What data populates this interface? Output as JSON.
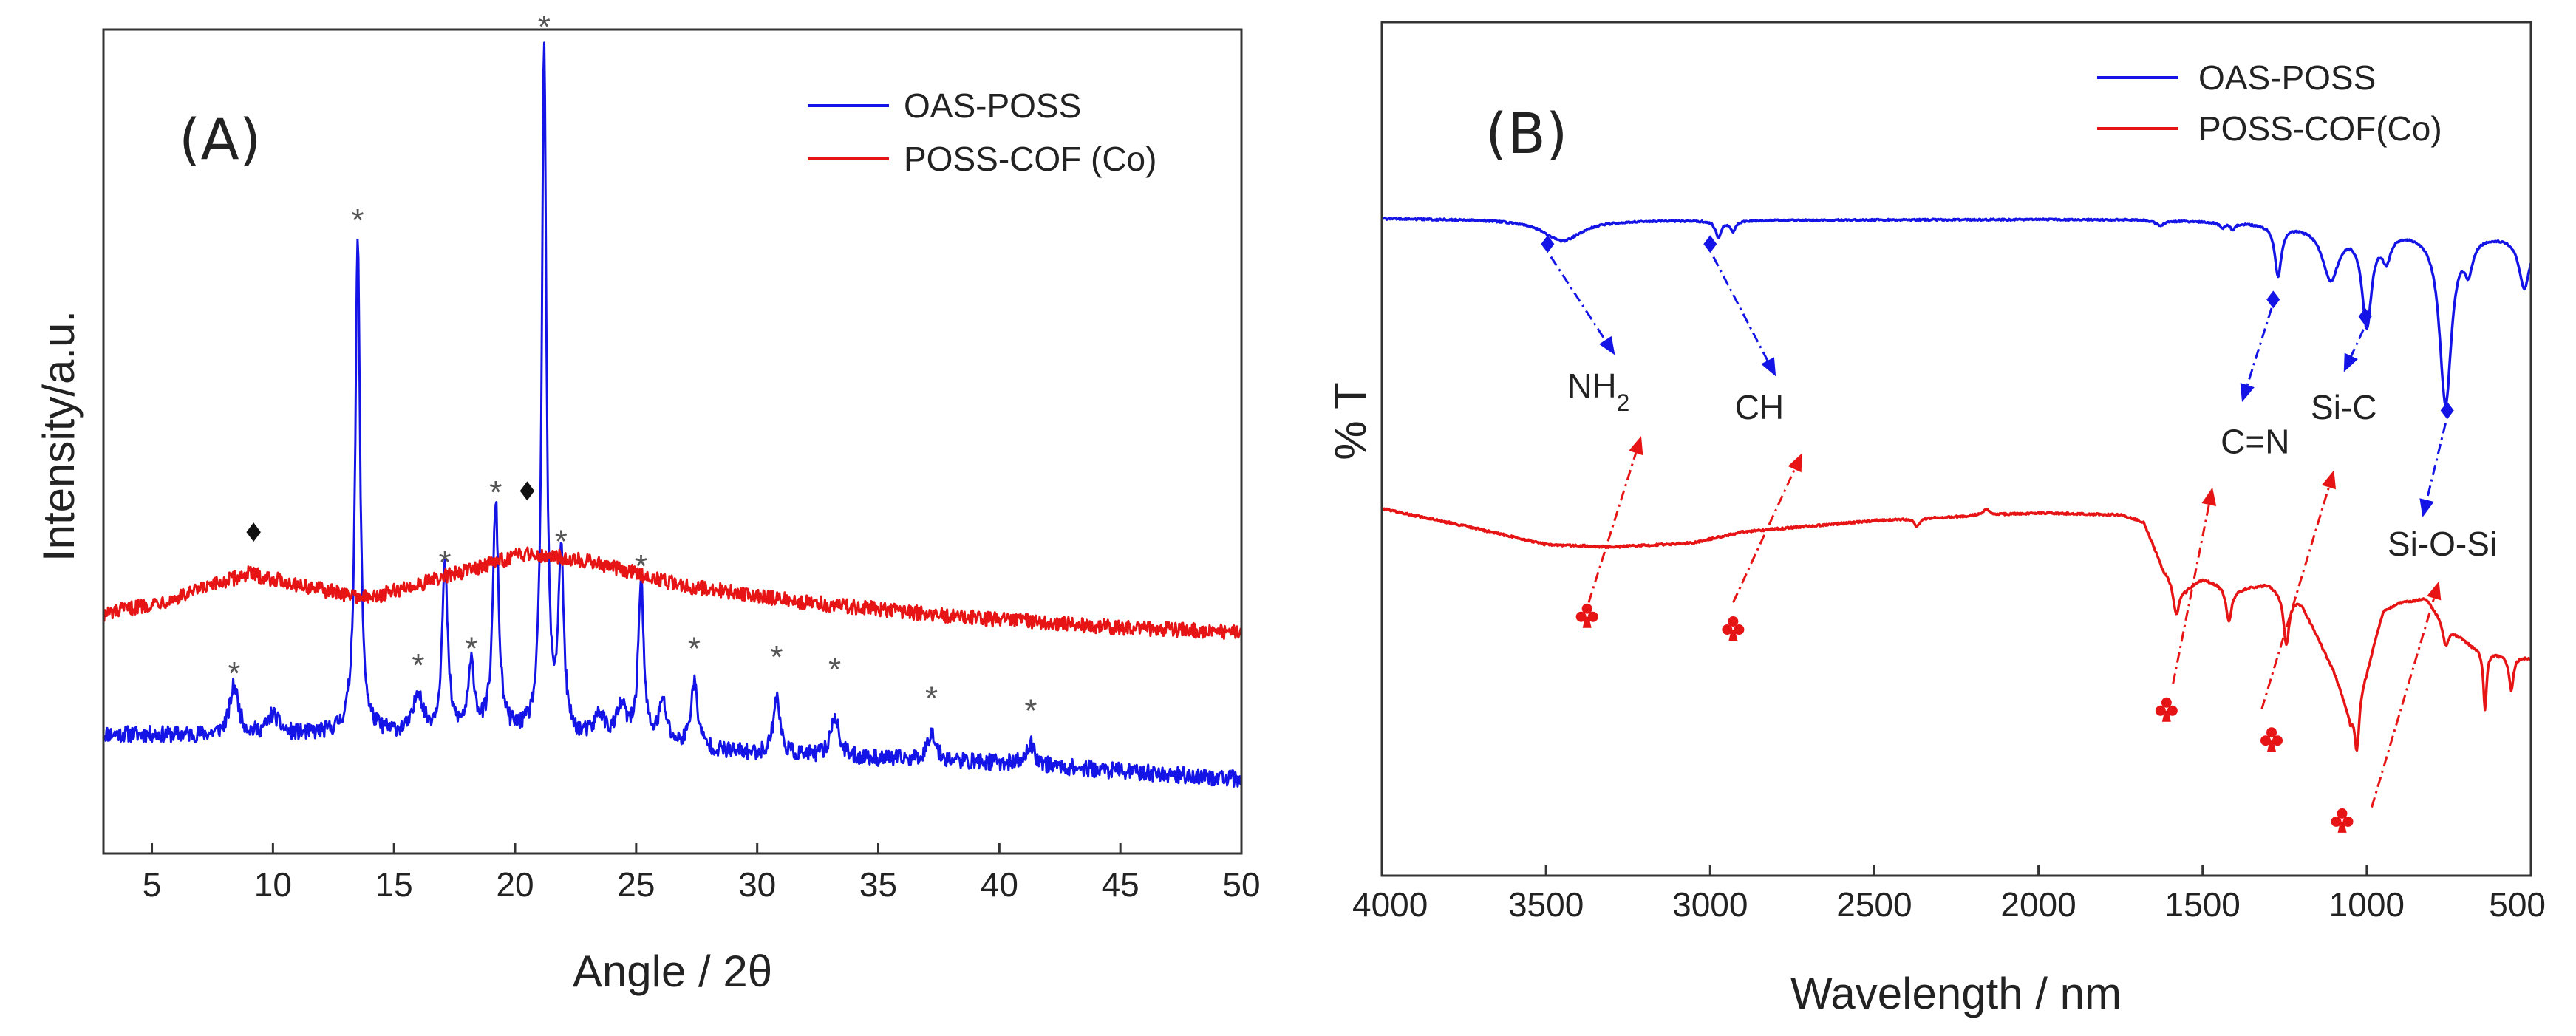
{
  "chart_data": [
    {
      "type": "line",
      "panel_label": "(A)",
      "title": "",
      "xlabel": "Angle / 2θ",
      "ylabel": "Intensity/a.u.",
      "xlim": [
        3,
        50
      ],
      "ylim": [
        0,
        100
      ],
      "xticks": [
        5,
        10,
        15,
        20,
        25,
        30,
        35,
        40,
        45,
        50
      ],
      "y_ticks_shown": false,
      "grid": false,
      "legend_position": "top-right",
      "series": [
        {
          "name": "OAS-POSS",
          "color": "#1414e6",
          "noise": 1.0,
          "baseline": [
            [
              3,
              14.5
            ],
            [
              10,
              14.2
            ],
            [
              13,
              14.6
            ],
            [
              20,
              14.3
            ],
            [
              30,
              12.0
            ],
            [
              40,
              11.0
            ],
            [
              50,
              9.0
            ]
          ],
          "peaks": [
            {
              "x": 8.4,
              "height": 6,
              "width": 0.22
            },
            {
              "x": 10.0,
              "height": 2.5,
              "width": 0.3
            },
            {
              "x": 13.5,
              "height": 60,
              "width": 0.12
            },
            {
              "x": 16.0,
              "height": 5,
              "width": 0.2
            },
            {
              "x": 17.1,
              "height": 20,
              "width": 0.14
            },
            {
              "x": 18.2,
              "height": 8,
              "width": 0.16
            },
            {
              "x": 19.2,
              "height": 28,
              "width": 0.14
            },
            {
              "x": 21.2,
              "height": 84,
              "width": 0.11
            },
            {
              "x": 21.9,
              "height": 22,
              "width": 0.13
            },
            {
              "x": 23.5,
              "height": 3,
              "width": 0.25
            },
            {
              "x": 24.4,
              "height": 4,
              "width": 0.25
            },
            {
              "x": 25.2,
              "height": 20,
              "width": 0.13
            },
            {
              "x": 26.1,
              "height": 5,
              "width": 0.2
            },
            {
              "x": 27.4,
              "height": 8,
              "width": 0.17
            },
            {
              "x": 30.8,
              "height": 7,
              "width": 0.17
            },
            {
              "x": 33.2,
              "height": 5,
              "width": 0.2
            },
            {
              "x": 37.2,
              "height": 3.5,
              "width": 0.2
            },
            {
              "x": 41.3,
              "height": 2.5,
              "width": 0.2
            }
          ]
        },
        {
          "name": "POSS-COF (Co)",
          "color": "#e61414",
          "noise": 0.9,
          "baseline": [
            [
              3,
              29.0
            ],
            [
              6,
              31.0
            ],
            [
              9,
              34.0
            ],
            [
              12,
              32.0
            ],
            [
              14,
              31.0
            ],
            [
              17,
              33.5
            ],
            [
              20.5,
              36.5
            ],
            [
              23,
              35.5
            ],
            [
              27,
              32.5
            ],
            [
              32,
              30.5
            ],
            [
              38,
              28.8
            ],
            [
              44,
              27.6
            ],
            [
              50,
              26.8
            ]
          ],
          "peaks": []
        }
      ],
      "annotations": [
        {
          "marker": "*",
          "x": 8.4,
          "y": 22.5
        },
        {
          "marker": "*",
          "x": 13.5,
          "y": 77.5
        },
        {
          "marker": "*",
          "x": 16.0,
          "y": 23.5
        },
        {
          "marker": "*",
          "x": 17.1,
          "y": 36.0
        },
        {
          "marker": "*",
          "x": 18.2,
          "y": 25.5
        },
        {
          "marker": "*",
          "x": 19.2,
          "y": 44.5
        },
        {
          "marker": "*",
          "x": 21.2,
          "y": 101.0
        },
        {
          "marker": "*",
          "x": 21.9,
          "y": 38.5
        },
        {
          "marker": "*",
          "x": 25.2,
          "y": 35.5
        },
        {
          "marker": "*",
          "x": 27.4,
          "y": 25.5
        },
        {
          "marker": "*",
          "x": 30.8,
          "y": 24.5
        },
        {
          "marker": "*",
          "x": 33.2,
          "y": 23.0
        },
        {
          "marker": "*",
          "x": 37.2,
          "y": 19.5
        },
        {
          "marker": "*",
          "x": 41.3,
          "y": 18.0
        }
      ],
      "diamond_markers": [
        {
          "x": 9.2,
          "y": 39.0
        },
        {
          "x": 20.5,
          "y": 44.0
        }
      ]
    },
    {
      "type": "line",
      "panel_label": "(B)",
      "title": "",
      "xlabel": "Wavelength / nm",
      "ylabel": "% T",
      "xlim": [
        4000,
        500
      ],
      "ylim": [
        0,
        100
      ],
      "xticks": [
        4000,
        3500,
        3000,
        2500,
        2000,
        1500,
        1000,
        500
      ],
      "y_ticks_shown": false,
      "grid": false,
      "legend_position": "top-right",
      "series": [
        {
          "name": "OAS-POSS",
          "color": "#1414e6",
          "noise": 0.1,
          "baseline": [
            [
              4000,
              77.0
            ],
            [
              3000,
              76.8
            ],
            [
              2000,
              76.9
            ],
            [
              1700,
              76.9
            ],
            [
              1300,
              76.5
            ],
            [
              500,
              75.0
            ]
          ],
          "peaks": [
            {
              "x": 3450,
              "height": -2.5,
              "width": 70
            },
            {
              "x": 2975,
              "height": -2.0,
              "width": 10
            },
            {
              "x": 2930,
              "height": -1.2,
              "width": 10
            },
            {
              "x": 1630,
              "height": -0.6,
              "width": 15
            },
            {
              "x": 1440,
              "height": -0.6,
              "width": 10
            },
            {
              "x": 1408,
              "height": -0.8,
              "width": 8
            },
            {
              "x": 1270,
              "height": -6.0,
              "width": 12
            },
            {
              "x": 1110,
              "height": -6.0,
              "width": 30
            },
            {
              "x": 1000,
              "height": -11.0,
              "width": 18
            },
            {
              "x": 940,
              "height": -3.0,
              "width": 15
            },
            {
              "x": 760,
              "height": -20.0,
              "width": 22
            },
            {
              "x": 690,
              "height": -3.5,
              "width": 15
            },
            {
              "x": 520,
              "height": -6.0,
              "width": 20
            }
          ]
        },
        {
          "name": "POSS-COF(Co)",
          "color": "#e61414",
          "noise": 0.12,
          "baseline": [
            [
              4000,
              43.0
            ],
            [
              3750,
              41.0
            ],
            [
              3500,
              38.8
            ],
            [
              3300,
              38.5
            ],
            [
              3050,
              39.0
            ],
            [
              2900,
              40.3
            ],
            [
              2500,
              41.6
            ],
            [
              2000,
              42.5
            ],
            [
              1750,
              42.3
            ],
            [
              1680,
              41.5
            ],
            [
              1620,
              36.0
            ],
            [
              1550,
              33.8
            ],
            [
              1500,
              34.8
            ],
            [
              1400,
              33.6
            ],
            [
              1300,
              34.2
            ],
            [
              1200,
              32.0
            ],
            [
              1100,
              24.0
            ],
            [
              1050,
              18.5
            ],
            [
              1000,
              24.0
            ],
            [
              950,
              31.0
            ],
            [
              900,
              32.0
            ],
            [
              820,
              32.5
            ],
            [
              750,
              29.0
            ],
            [
              680,
              27.0
            ],
            [
              600,
              26.0
            ],
            [
              500,
              25.5
            ]
          ],
          "peaks": [
            {
              "x": 2370,
              "height": -1.0,
              "width": 8
            },
            {
              "x": 2160,
              "height": 0.7,
              "width": 15
            },
            {
              "x": 1580,
              "height": -4.0,
              "width": 12
            },
            {
              "x": 1420,
              "height": -4.0,
              "width": 10
            },
            {
              "x": 1245,
              "height": -6.0,
              "width": 10
            },
            {
              "x": 1030,
              "height": -6.0,
              "width": 8
            },
            {
              "x": 760,
              "height": -2.5,
              "width": 10
            },
            {
              "x": 640,
              "height": -7.0,
              "width": 6
            },
            {
              "x": 560,
              "height": -4.0,
              "width": 8
            }
          ]
        }
      ],
      "group_labels": [
        {
          "text": "NH",
          "sub": "2",
          "x": 3340,
          "y": 56
        },
        {
          "text": "CH",
          "sub": "",
          "x": 2850,
          "y": 53.5
        },
        {
          "text": "C=N",
          "sub": "",
          "x": 1340,
          "y": 49.5
        },
        {
          "text": "Si-C",
          "sub": "",
          "x": 1070,
          "y": 53.5
        },
        {
          "text": "Si-O-Si",
          "sub": "",
          "x": 770,
          "y": 37.5
        }
      ],
      "blue_arrows": [
        {
          "from": [
            3485,
            72.5
          ],
          "to": [
            3290,
            61
          ]
        },
        {
          "from": [
            2990,
            72.5
          ],
          "to": [
            2800,
            58.5
          ]
        },
        {
          "from": [
            1290,
            66.5
          ],
          "to": [
            1380,
            55.5
          ]
        },
        {
          "from": [
            1010,
            64
          ],
          "to": [
            1070,
            59
          ]
        },
        {
          "from": [
            760,
            53
          ],
          "to": [
            830,
            42
          ]
        }
      ],
      "red_arrows": [
        {
          "from": [
            3370,
            32
          ],
          "to": [
            3210,
            51.5
          ]
        },
        {
          "from": [
            2930,
            32
          ],
          "to": [
            2720,
            49.5
          ]
        },
        {
          "from": [
            1590,
            22.5
          ],
          "to": [
            1470,
            45.5
          ]
        },
        {
          "from": [
            1320,
            19.5
          ],
          "to": [
            1100,
            47.5
          ]
        },
        {
          "from": [
            985,
            8
          ],
          "to": [
            780,
            34.5
          ]
        }
      ],
      "club_markers": [
        {
          "x": 3375,
          "y": 30.5
        },
        {
          "x": 2930,
          "y": 29.0
        },
        {
          "x": 1610,
          "y": 19.5
        },
        {
          "x": 1290,
          "y": 16.0
        },
        {
          "x": 1075,
          "y": 6.5
        }
      ],
      "diamond_markers": [
        {
          "x": 3495,
          "y": 74.0
        },
        {
          "x": 3000,
          "y": 74.0
        },
        {
          "x": 1285,
          "y": 67.5
        },
        {
          "x": 1005,
          "y": 65.5
        },
        {
          "x": 755,
          "y": 54.5
        }
      ]
    }
  ]
}
